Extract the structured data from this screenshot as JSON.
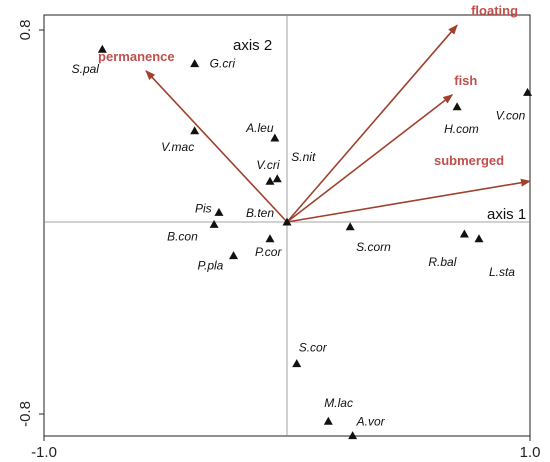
{
  "chart_data": {
    "type": "scatter",
    "xlim": [
      -1.0,
      1.0
    ],
    "ylim": [
      -0.8,
      0.8
    ],
    "x_ticks": [
      {
        "value": -1.0,
        "label": "-1.0"
      },
      {
        "value": 1.0,
        "label": "1.0"
      }
    ],
    "y_ticks": [
      {
        "value": 0.8,
        "label": "0.8"
      },
      {
        "value": -0.8,
        "label": "-0.8"
      }
    ],
    "axis_labels": {
      "axis1": "axis 1",
      "axis2": "axis 2"
    },
    "grid": false,
    "colors": {
      "vector": "#a0412d",
      "env_label": "#c0504d",
      "marker": "#111111"
    },
    "species": [
      {
        "name": "S.pal",
        "x": -0.76,
        "y": 0.72
      },
      {
        "name": "G.cri",
        "x": -0.38,
        "y": 0.66
      },
      {
        "name": "V.mac",
        "x": -0.38,
        "y": 0.38
      },
      {
        "name": "A.leu",
        "x": -0.05,
        "y": 0.35
      },
      {
        "name": "V.cri",
        "x": -0.07,
        "y": 0.17
      },
      {
        "name": "S.nit",
        "x": -0.04,
        "y": 0.18
      },
      {
        "name": "Pis",
        "x": -0.28,
        "y": 0.04
      },
      {
        "name": "B.ten",
        "x": 0.0,
        "y": 0.0
      },
      {
        "name": "B.con",
        "x": -0.3,
        "y": -0.01
      },
      {
        "name": "P.cor",
        "x": -0.07,
        "y": -0.07
      },
      {
        "name": "P.pla",
        "x": -0.22,
        "y": -0.14
      },
      {
        "name": "S.corn",
        "x": 0.26,
        "y": -0.02
      },
      {
        "name": "R.bal",
        "x": 0.73,
        "y": -0.05
      },
      {
        "name": "L.sta",
        "x": 0.79,
        "y": -0.07
      },
      {
        "name": "H.com",
        "x": 0.7,
        "y": 0.48
      },
      {
        "name": "V.con",
        "x": 0.99,
        "y": 0.54
      },
      {
        "name": "S.cor",
        "x": 0.04,
        "y": -0.59
      },
      {
        "name": "M.lac",
        "x": 0.17,
        "y": -0.83
      },
      {
        "name": "A.vor",
        "x": 0.27,
        "y": -0.89
      }
    ],
    "vectors": [
      {
        "name": "permanence",
        "x": -0.58,
        "y": 0.63
      },
      {
        "name": "floating",
        "x": 0.7,
        "y": 0.82
      },
      {
        "name": "fish",
        "x": 0.68,
        "y": 0.53
      },
      {
        "name": "submerged",
        "x": 1.0,
        "y": 0.17
      }
    ]
  }
}
